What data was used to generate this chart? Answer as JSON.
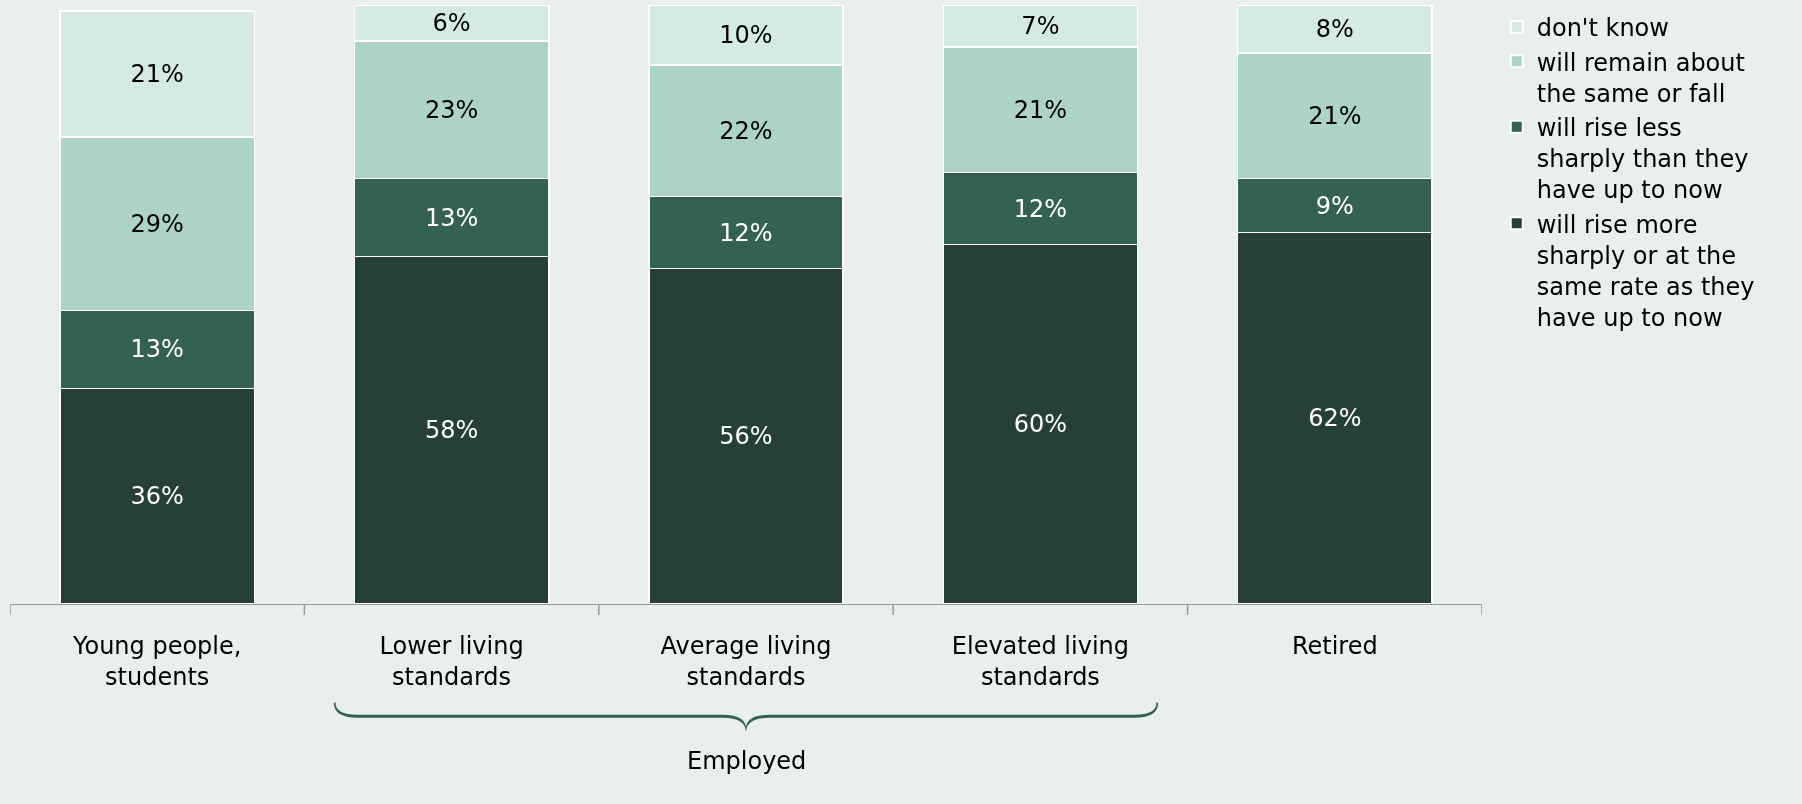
{
  "chart_data": {
    "type": "bar",
    "stacked": true,
    "legend": "right",
    "grid": false,
    "categories": [
      "Young people, students",
      "Lower living standards",
      "Average living standards",
      "Elevated living standards",
      "Retired"
    ],
    "series": [
      {
        "name": "will rise more sharply or at the same rate as they have up to now",
        "color": "#263f38",
        "values": [
          36,
          58,
          56,
          60,
          62
        ],
        "value_labels": [
          "36%",
          "58%",
          "56%",
          "60%",
          "62%"
        ]
      },
      {
        "name": "will rise less sharply than they have up to now",
        "color": "#356152",
        "values": [
          13,
          13,
          12,
          12,
          9
        ],
        "value_labels": [
          "13%",
          "13%",
          "12%",
          "12%",
          "9%"
        ]
      },
      {
        "name": "will remain about the same or fall",
        "color": "#add3c8",
        "values": [
          29,
          23,
          22,
          21,
          21
        ],
        "value_labels": [
          "29%",
          "23%",
          "22%",
          "21%",
          "21%"
        ]
      },
      {
        "name": "don't know",
        "color": "#d6eae5",
        "values": [
          21,
          6,
          10,
          7,
          8
        ],
        "value_labels": [
          "21%",
          "6%",
          "10%",
          "7%",
          "8%"
        ]
      }
    ],
    "annotations": [
      "Employed"
    ]
  }
}
